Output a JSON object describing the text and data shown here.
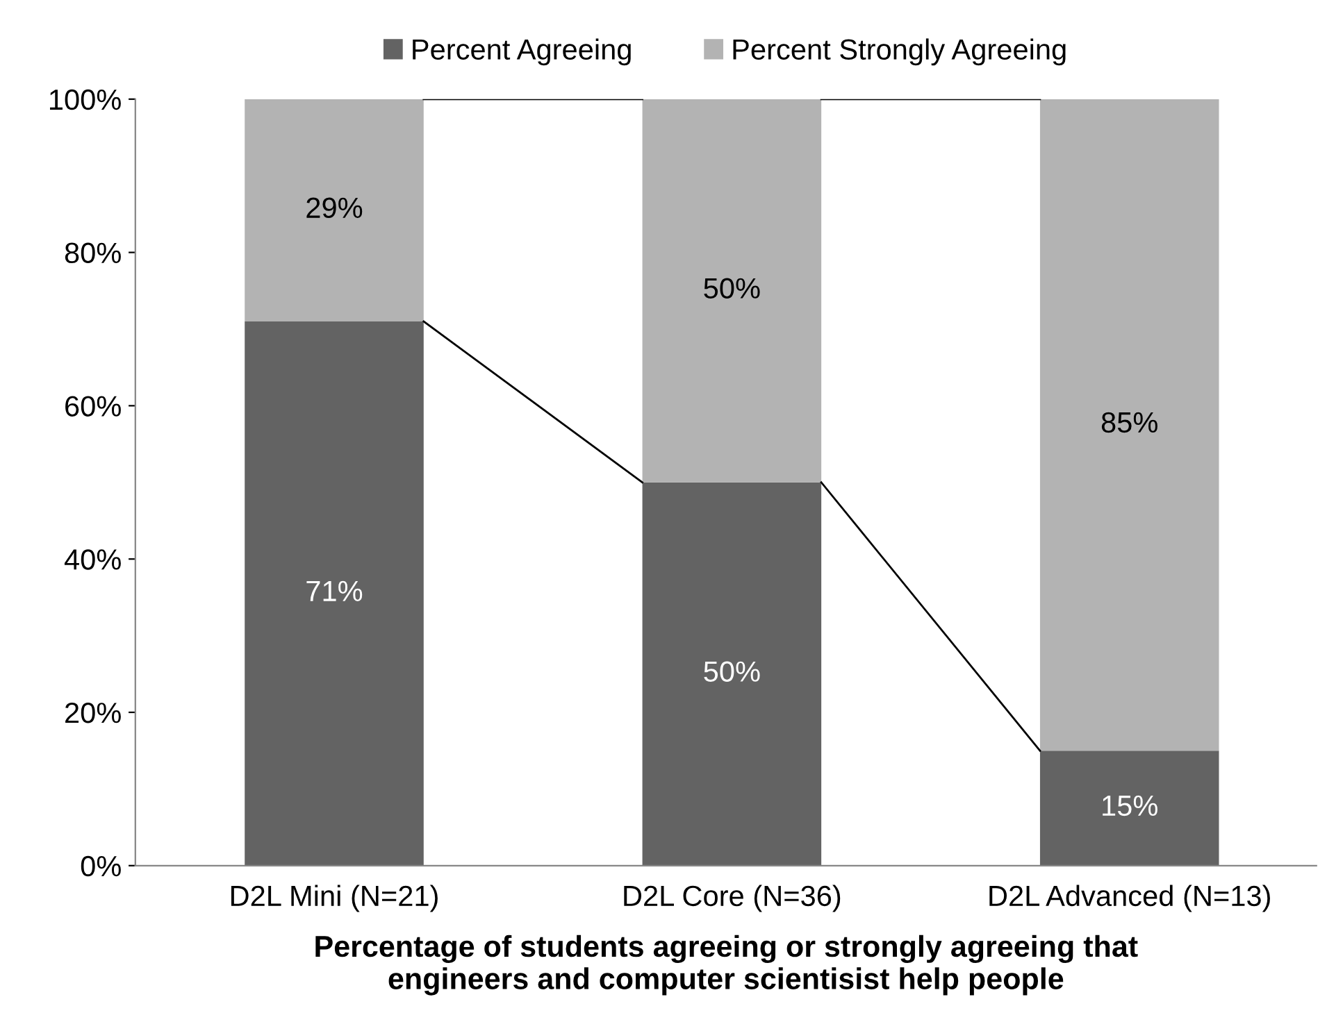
{
  "chart_data": {
    "type": "bar",
    "stacked": true,
    "xlabel": "Percentage of students agreeing or strongly agreeing that\nengineers and computer scientisist help people",
    "categories": [
      "D2L Mini (N=21)",
      "D2L Core (N=36)",
      "D2L Advanced (N=13)"
    ],
    "series": [
      {
        "name": "Percent Agreeing",
        "color": "#636363",
        "values": [
          71,
          50,
          15
        ]
      },
      {
        "name": "Percent Strongly Agreeing",
        "color": "#b3b3b3",
        "values": [
          29,
          50,
          85
        ]
      }
    ],
    "value_labels": [
      [
        "71%",
        "50%",
        "15%"
      ],
      [
        "29%",
        "50%",
        "85%"
      ]
    ],
    "ylim": [
      0,
      100
    ],
    "yticks": [
      {
        "value": 0,
        "label": "0%"
      },
      {
        "value": 20,
        "label": "20%"
      },
      {
        "value": 40,
        "label": "40%"
      },
      {
        "value": 60,
        "label": "60%"
      },
      {
        "value": 80,
        "label": "80%"
      },
      {
        "value": 100,
        "label": "100%"
      }
    ],
    "grid": false,
    "legend": "top"
  }
}
